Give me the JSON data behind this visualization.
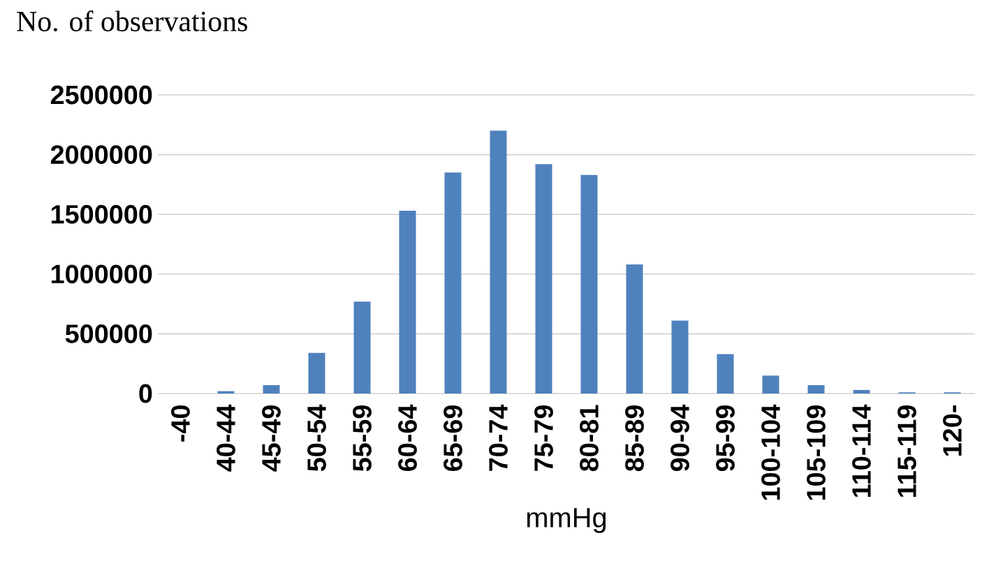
{
  "chart_data": {
    "type": "bar",
    "ylabel": "No. of observations",
    "xlabel": "mmHg",
    "categories": [
      "-40",
      "40-44",
      "45-49",
      "50-54",
      "55-59",
      "60-64",
      "65-69",
      "70-74",
      "75-79",
      "80-81",
      "85-89",
      "90-94",
      "95-99",
      "100-104",
      "105-109",
      "110-114",
      "115-119",
      "120-"
    ],
    "values": [
      0,
      20000,
      70000,
      340000,
      770000,
      1530000,
      1850000,
      2200000,
      1920000,
      1830000,
      1080000,
      610000,
      330000,
      150000,
      70000,
      30000,
      10000,
      10000
    ],
    "color": "#4f81bd",
    "ylim": [
      0,
      2500000
    ],
    "yticks": [
      0,
      500000,
      1000000,
      1500000,
      2000000,
      2500000
    ],
    "grid": "y"
  }
}
